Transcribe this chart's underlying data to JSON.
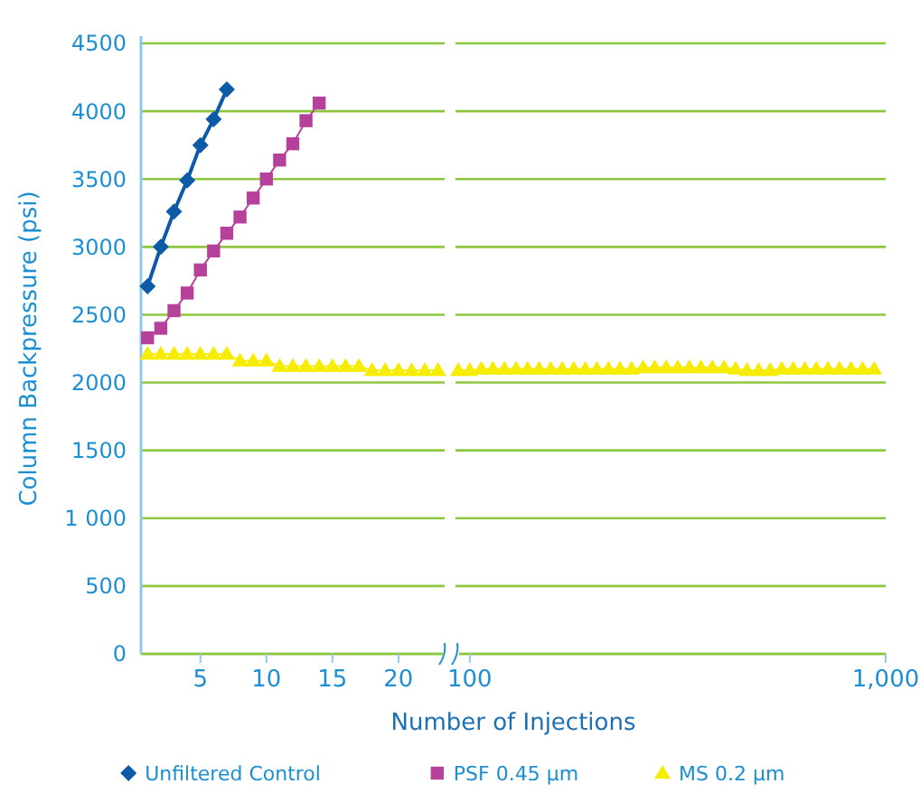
{
  "chart_data": [
    {
      "type": "line",
      "xlabel": "Number of Injections",
      "ylabel": "Column Backpressure (psi)",
      "xlim": [
        0.5,
        23.5
      ],
      "xticks": [
        5,
        10,
        15,
        20
      ],
      "ylim": [
        0,
        4500
      ],
      "yticks": [
        0,
        500,
        {
          "value": 1000,
          "label": "1 000"
        },
        1500,
        2000,
        2500,
        3000,
        3500,
        4000,
        4500
      ],
      "grid": "y",
      "legend": "bottom",
      "series": [
        {
          "name": "Unfiltered Control",
          "color": "#0d5aa7",
          "marker": "diamond",
          "x": [
            1,
            2,
            3,
            4,
            5,
            6,
            7
          ],
          "values": [
            2710,
            3000,
            3260,
            3490,
            3750,
            3940,
            4160
          ]
        },
        {
          "name": "PSF 0.45 µm",
          "color": "#b5419a",
          "marker": "square",
          "x": [
            1,
            2,
            3,
            4,
            5,
            6,
            7,
            8,
            9,
            10,
            11,
            12,
            13,
            14
          ],
          "values": [
            2330,
            2400,
            2530,
            2660,
            2830,
            2970,
            3100,
            3220,
            3360,
            3500,
            3640,
            3760,
            3930,
            4060
          ]
        },
        {
          "name": "MS 0.2 µm",
          "color": "#f5ec00",
          "marker": "triangle",
          "x": [
            1,
            2,
            3,
            4,
            5,
            6,
            7,
            8,
            9,
            10,
            11,
            12,
            13,
            14,
            15,
            16,
            17,
            18,
            19,
            20,
            21,
            22,
            23
          ],
          "values": [
            2210,
            2210,
            2210,
            2210,
            2210,
            2210,
            2210,
            2160,
            2160,
            2160,
            2120,
            2120,
            2120,
            2120,
            2120,
            2120,
            2120,
            2090,
            2090,
            2090,
            2090,
            2090,
            2090
          ]
        }
      ]
    },
    {
      "type": "line",
      "xlim": [
        69,
        1000
      ],
      "xticks": [
        100,
        {
          "value": 1000,
          "label": "1,000"
        }
      ],
      "ylim": [
        0,
        4500
      ],
      "tick_labels": "x",
      "grid": "y",
      "series": [
        {
          "color": "#f5ec00",
          "marker": "triangle",
          "x": [
            75,
            100,
            125,
            150,
            175,
            200,
            225,
            250,
            275,
            300,
            325,
            350,
            375,
            400,
            425,
            450,
            475,
            500,
            525,
            550,
            575,
            600,
            625,
            650,
            675,
            700,
            725,
            750,
            775,
            800,
            825,
            850,
            875,
            900,
            925,
            950,
            975
          ],
          "values": [
            2090,
            2090,
            2100,
            2100,
            2100,
            2100,
            2100,
            2100,
            2100,
            2100,
            2100,
            2100,
            2100,
            2100,
            2100,
            2100,
            2110,
            2110,
            2110,
            2110,
            2110,
            2110,
            2110,
            2110,
            2100,
            2090,
            2090,
            2090,
            2100,
            2100,
            2100,
            2100,
            2100,
            2100,
            2100,
            2100,
            2100
          ]
        }
      ]
    }
  ]
}
